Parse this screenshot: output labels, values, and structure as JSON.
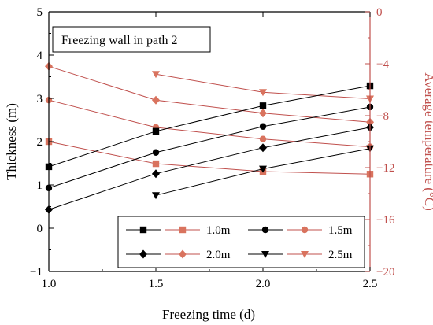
{
  "chart_data": {
    "type": "line",
    "annotation": "Freezing wall in path 2",
    "xlabel": "Freezing time (d)",
    "ylabel_left": "Thickness (m)",
    "ylabel_right": "Average temperature (°C)",
    "xlim": [
      1.0,
      2.5
    ],
    "ylim_left": [
      -1,
      5
    ],
    "ylim_right": [
      -20,
      0
    ],
    "x_ticks": [
      "1.0",
      "1.5",
      "2.0",
      "2.5"
    ],
    "y_left_ticks": [
      "−1",
      "0",
      "1",
      "2",
      "3",
      "4",
      "5"
    ],
    "y_right_ticks": [
      "−20",
      "−16",
      "−12",
      "−8",
      "−4",
      "0"
    ],
    "legend_placement": "bottom-right",
    "grid": false,
    "colors": {
      "thickness": "#000000",
      "temperature": "#c0504d",
      "temperature_marker": "#d9735e"
    },
    "thickness_series": [
      {
        "name": "1.0m",
        "marker": "square",
        "x": [
          1.0,
          1.5,
          2.0,
          2.5
        ],
        "y": [
          1.42,
          2.24,
          2.83,
          3.29
        ]
      },
      {
        "name": "1.5m",
        "marker": "circle",
        "x": [
          1.0,
          1.5,
          2.0,
          2.5
        ],
        "y": [
          0.93,
          1.75,
          2.35,
          2.8
        ]
      },
      {
        "name": "2.0m",
        "marker": "diamond",
        "x": [
          1.0,
          1.5,
          2.0,
          2.5
        ],
        "y": [
          0.43,
          1.26,
          1.86,
          2.33
        ]
      },
      {
        "name": "2.5m",
        "marker": "triangle-down",
        "x": [
          1.5,
          2.0,
          2.5
        ],
        "y": [
          0.76,
          1.37,
          1.84
        ]
      }
    ],
    "temperature_series": [
      {
        "name": "1.0m",
        "marker": "square",
        "x": [
          1.0,
          1.5,
          2.0,
          2.5
        ],
        "y": [
          -10.0,
          -11.7,
          -12.3,
          -12.5
        ]
      },
      {
        "name": "1.5m",
        "marker": "circle",
        "x": [
          1.0,
          1.5,
          2.0,
          2.5
        ],
        "y": [
          -6.8,
          -8.9,
          -9.8,
          -10.4
        ]
      },
      {
        "name": "2.0m",
        "marker": "diamond",
        "x": [
          1.0,
          1.5,
          2.0,
          2.5
        ],
        "y": [
          -4.2,
          -6.8,
          -7.8,
          -8.5
        ]
      },
      {
        "name": "2.5m",
        "marker": "triangle-down",
        "x": [
          1.5,
          2.0,
          2.5
        ],
        "y": [
          -4.8,
          -6.2,
          -6.7
        ]
      }
    ]
  }
}
